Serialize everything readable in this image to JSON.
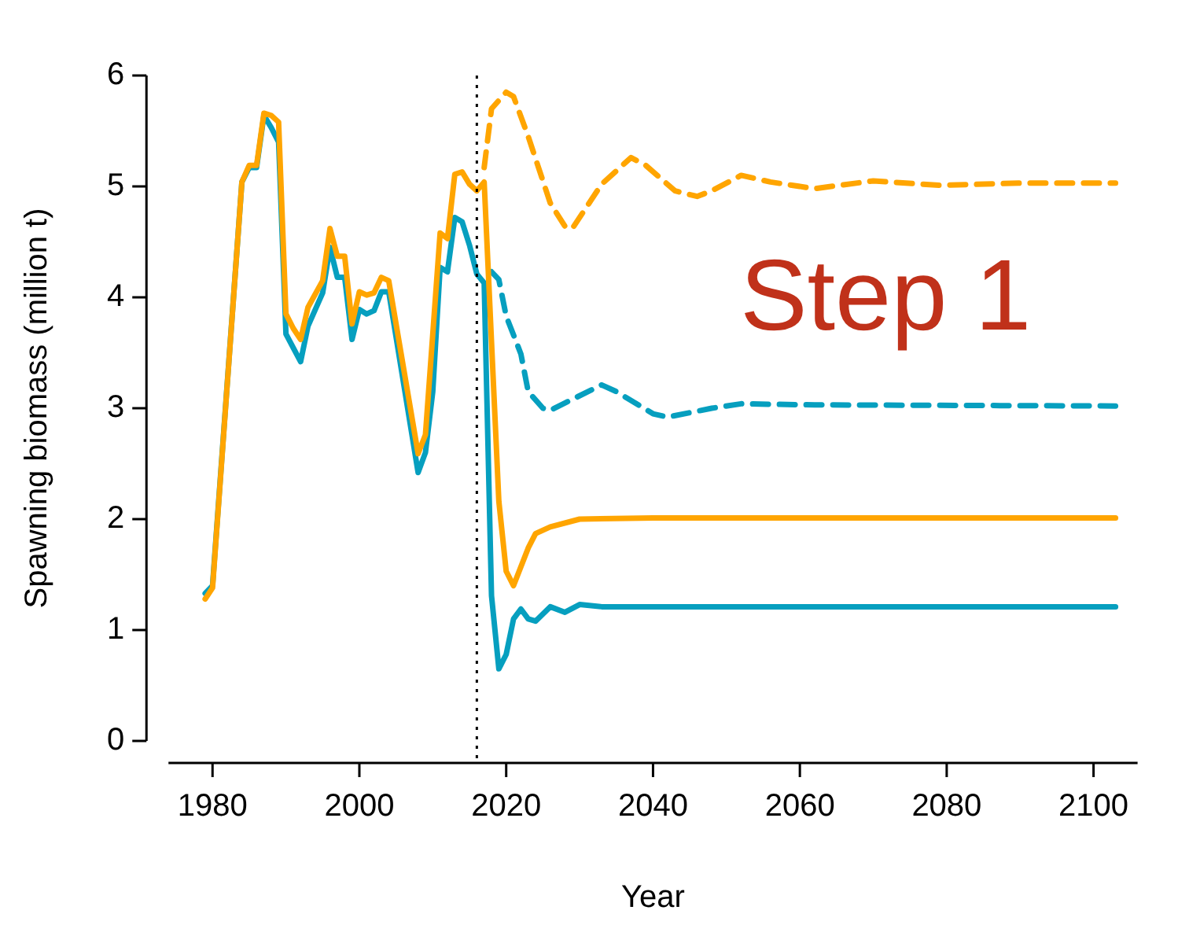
{
  "chart_data": {
    "type": "line",
    "xlabel": "Year",
    "ylabel": "Spawning biomass (million t)",
    "annotations": [
      "Step 1"
    ],
    "xlim": [
      1974,
      2106
    ],
    "ylim": [
      0,
      6
    ],
    "xticks": [
      1980,
      2000,
      2020,
      2040,
      2060,
      2080,
      2100
    ],
    "yticks": [
      0,
      1,
      2,
      3,
      4,
      5,
      6
    ],
    "grid": false,
    "legend": false,
    "marker": "none",
    "series": [
      {
        "color": "#ffa500",
        "line_style": "solid",
        "x": [
          1979,
          1980,
          1984,
          1985,
          1986,
          1987,
          1988,
          1989,
          1990,
          1991,
          1992,
          1993,
          1995,
          1996,
          1997,
          1998,
          1999,
          2000,
          2001,
          2002,
          2003,
          2004,
          2008,
          2009,
          2011,
          2012,
          2013,
          2014,
          2015,
          2016,
          2017,
          2019,
          2020,
          2021,
          2023,
          2024,
          2026,
          2030,
          2040,
          2103
        ],
        "values": [
          1.28,
          1.38,
          5.04,
          5.19,
          5.19,
          5.66,
          5.64,
          5.58,
          3.85,
          3.72,
          3.62,
          3.91,
          4.15,
          4.62,
          4.37,
          4.37,
          3.76,
          4.05,
          4.02,
          4.04,
          4.18,
          4.15,
          2.59,
          2.76,
          4.58,
          4.53,
          5.11,
          5.13,
          5.02,
          4.96,
          5.04,
          2.16,
          1.53,
          1.4,
          1.74,
          1.87,
          1.93,
          2.0,
          2.01,
          2.01
        ]
      },
      {
        "color": "#069fbf",
        "line_style": "solid",
        "x": [
          1979,
          1980,
          1984,
          1985,
          1986,
          1987,
          1988,
          1989,
          1990,
          1992,
          1993,
          1995,
          1996,
          1997,
          1998,
          1999,
          2000,
          2001,
          2002,
          2003,
          2004,
          2008,
          2009,
          2010,
          2011,
          2012,
          2013,
          2014,
          2015,
          2016,
          2017,
          2018,
          2019,
          2020,
          2021,
          2022,
          2023,
          2024,
          2026,
          2028,
          2030,
          2033,
          2103
        ],
        "values": [
          1.33,
          1.4,
          5.04,
          5.17,
          5.17,
          5.64,
          5.53,
          5.4,
          3.67,
          3.42,
          3.74,
          4.04,
          4.45,
          4.18,
          4.18,
          3.62,
          3.89,
          3.85,
          3.88,
          4.05,
          4.05,
          2.42,
          2.6,
          3.15,
          4.27,
          4.23,
          4.72,
          4.68,
          4.47,
          4.21,
          4.13,
          1.31,
          0.65,
          0.78,
          1.1,
          1.19,
          1.1,
          1.08,
          1.21,
          1.16,
          1.23,
          1.21,
          1.21
        ]
      },
      {
        "color": "#ffa500",
        "line_style": "dashed",
        "x": [
          2017,
          2018,
          2020,
          2021,
          2023,
          2026,
          2028,
          2029,
          2033,
          2037,
          2039,
          2043,
          2046,
          2048,
          2052,
          2056,
          2062,
          2070,
          2079,
          2090,
          2103
        ],
        "values": [
          5.17,
          5.7,
          5.85,
          5.81,
          5.45,
          4.85,
          4.64,
          4.62,
          5.02,
          5.26,
          5.19,
          4.96,
          4.91,
          4.96,
          5.1,
          5.04,
          4.98,
          5.05,
          5.01,
          5.03,
          5.03
        ]
      },
      {
        "color": "#069fbf",
        "line_style": "dashed",
        "x": [
          2018,
          2019,
          2020,
          2022,
          2023,
          2025,
          2026,
          2029,
          2033,
          2035,
          2040,
          2042,
          2048,
          2052,
          2062,
          2103
        ],
        "values": [
          4.23,
          4.16,
          3.83,
          3.49,
          3.15,
          3.0,
          2.98,
          3.08,
          3.21,
          3.15,
          2.95,
          2.92,
          3.0,
          3.04,
          3.03,
          3.02
        ]
      }
    ],
    "ref_lines": [
      {
        "axis": "x",
        "value": 2016,
        "color": "#000000",
        "line_style": "dotted"
      }
    ]
  }
}
